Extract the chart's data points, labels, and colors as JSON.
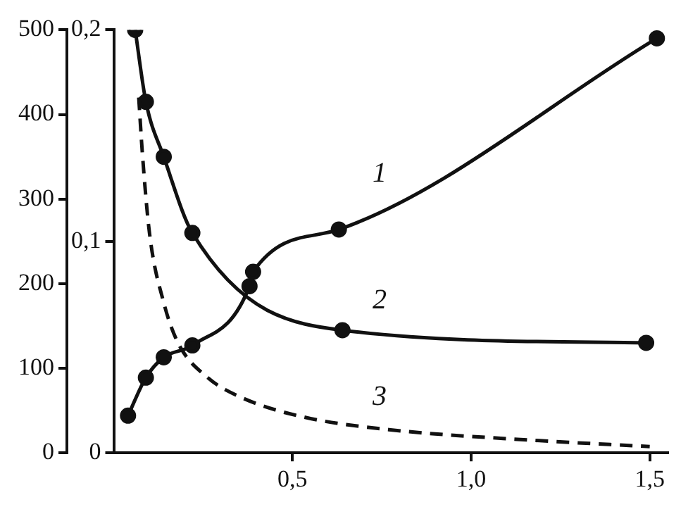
{
  "chart_data": {
    "type": "line",
    "xlim": [
      0,
      1.55
    ],
    "xticks": [
      {
        "value": 0.5,
        "label": "0,5"
      },
      {
        "value": 1.0,
        "label": "1,0"
      },
      {
        "value": 1.5,
        "label": "1,5"
      }
    ],
    "ylim": [
      0,
      500
    ],
    "yticks": [
      0,
      100,
      200,
      300,
      400,
      500
    ],
    "y2lim": [
      0,
      0.2
    ],
    "y2ticks": [
      0,
      {
        "value": 0.1,
        "label": "0,1"
      },
      {
        "value": 0.2,
        "label": "0,2"
      }
    ],
    "grid": false,
    "legend": false,
    "series": [
      {
        "name": "1",
        "color": "#111111",
        "marker": "circle",
        "line_style": "solid",
        "x": [
          0.04,
          0.09,
          0.14,
          0.22,
          0.38,
          0.39,
          0.63,
          1.52
        ],
        "values": [
          44,
          89,
          113,
          127,
          197,
          214,
          264,
          490
        ]
      },
      {
        "name": "2",
        "color": "#111111",
        "marker": "circle",
        "line_style": "solid",
        "axis": "y2",
        "x": [
          0.06,
          0.09,
          0.14,
          0.22,
          0.64,
          1.49
        ],
        "values": [
          0.2,
          0.166,
          0.14,
          0.104,
          0.058,
          0.052
        ]
      },
      {
        "name": "3",
        "color": "#111111",
        "marker": "none",
        "line_style": "dashed",
        "axis": "y2",
        "x": [
          0.07,
          0.08,
          0.1,
          0.14,
          0.18,
          0.26,
          0.36,
          0.53,
          0.77,
          1.17,
          1.5
        ],
        "values": [
          0.168,
          0.142,
          0.104,
          0.071,
          0.052,
          0.036,
          0.026,
          0.017,
          0.011,
          0.006,
          0.003
        ]
      }
    ]
  }
}
